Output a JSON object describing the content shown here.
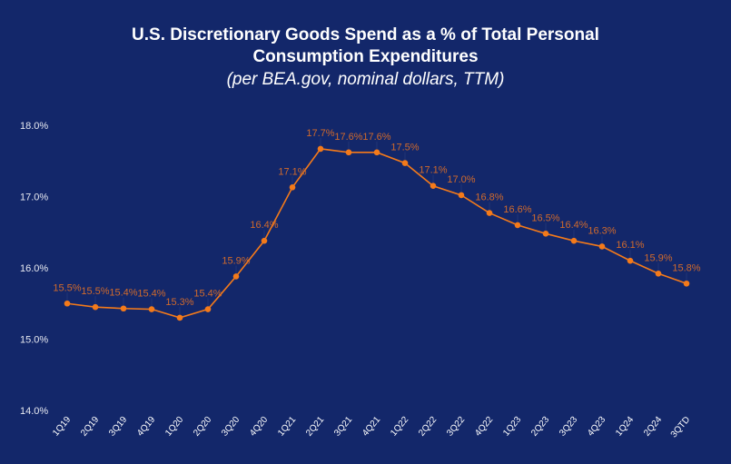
{
  "chart_data": {
    "type": "line",
    "title_line1": "U.S. Discretionary Goods Spend as a % of Total Personal",
    "title_line2": "Consumption Expenditures",
    "subtitle": "(per BEA.gov, nominal dollars, TTM)",
    "xlabel": "",
    "ylabel": "",
    "ylim": [
      14.0,
      18.0
    ],
    "yticks": [
      "14.0%",
      "15.0%",
      "16.0%",
      "17.0%",
      "18.0%"
    ],
    "grid": false,
    "categories": [
      "1Q19",
      "2Q19",
      "3Q19",
      "4Q19",
      "1Q20",
      "2Q20",
      "3Q20",
      "4Q20",
      "1Q21",
      "2Q21",
      "3Q21",
      "4Q21",
      "1Q22",
      "2Q22",
      "3Q22",
      "4Q22",
      "1Q23",
      "2Q23",
      "3Q23",
      "4Q23",
      "1Q24",
      "2Q24",
      "3QTD"
    ],
    "values": [
      15.5,
      15.45,
      15.43,
      15.42,
      15.3,
      15.42,
      15.88,
      16.38,
      17.13,
      17.67,
      17.62,
      17.62,
      17.47,
      17.15,
      17.02,
      16.77,
      16.6,
      16.48,
      16.38,
      16.3,
      16.1,
      15.92,
      15.78
    ],
    "data_labels": [
      "15.5%",
      "15.5%",
      "15.4%",
      "15.4%",
      "15.3%",
      "15.4%",
      "15.9%",
      "16.4%",
      "17.1%",
      "17.7%",
      "17.6%",
      "17.6%",
      "17.5%",
      "17.1%",
      "17.0%",
      "16.8%",
      "16.6%",
      "16.5%",
      "16.4%",
      "16.3%",
      "16.1%",
      "15.9%",
      "15.8%"
    ],
    "colors": {
      "background": "#13276a",
      "line": "#f47a1a",
      "data_label": "#d06a2c",
      "text": "#ffffff"
    }
  }
}
